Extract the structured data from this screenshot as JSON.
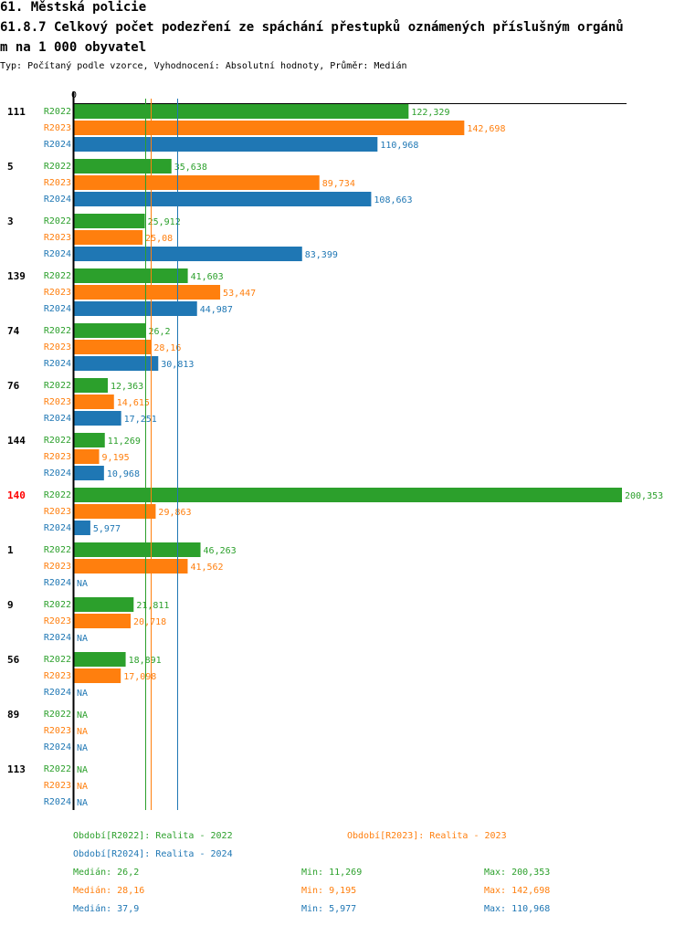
{
  "header": {
    "title1": "61. Městská policie",
    "title2": "61.8.7 Celkový počet podezření ze spáchání přestupků oznámených příslušným orgánů",
    "title3": "m na 1 000 obyvatel",
    "subtitle": "Typ: Počítaný podle vzorce, Vyhodnocení: Absolutní hodnoty, Průměr: Medián"
  },
  "colors": {
    "R2022": "#2ca02c",
    "R2023": "#ff7f0e",
    "R2024": "#1f77b4",
    "highlight": "#ff0000"
  },
  "chart_data": {
    "type": "bar",
    "orientation": "horizontal",
    "axis_zero_label": "0",
    "xlim": [
      0,
      200.353
    ],
    "highlighted_category": "140",
    "categories": [
      "111",
      "5",
      "3",
      "139",
      "74",
      "76",
      "144",
      "140",
      "1",
      "9",
      "56",
      "89",
      "113"
    ],
    "series": [
      {
        "name": "R2022",
        "values": [
          122.329,
          35.638,
          25.912,
          41.603,
          26.2,
          12.363,
          11.269,
          200.353,
          46.263,
          21.811,
          18.891,
          null,
          null
        ],
        "labels": [
          "122,329",
          "35,638",
          "25,912",
          "41,603",
          "26,2",
          "12,363",
          "11,269",
          "200,353",
          "46,263",
          "21,811",
          "18,891",
          "NA",
          "NA"
        ]
      },
      {
        "name": "R2023",
        "values": [
          142.698,
          89.734,
          25.08,
          53.447,
          28.16,
          14.615,
          9.195,
          29.863,
          41.562,
          20.718,
          17.098,
          null,
          null
        ],
        "labels": [
          "142,698",
          "89,734",
          "25,08",
          "53,447",
          "28,16",
          "14,615",
          "9,195",
          "29,863",
          "41,562",
          "20,718",
          "17,098",
          "NA",
          "NA"
        ]
      },
      {
        "name": "R2024",
        "values": [
          110.968,
          108.663,
          83.399,
          44.987,
          30.813,
          17.251,
          10.968,
          5.977,
          null,
          null,
          null,
          null,
          null
        ],
        "labels": [
          "110,968",
          "108,663",
          "83,399",
          "44,987",
          "30,813",
          "17,251",
          "10,968",
          "5,977",
          "NA",
          "NA",
          "NA",
          "NA",
          "NA"
        ]
      }
    ],
    "medians": {
      "R2022": 26.2,
      "R2023": 28.16,
      "R2024": 37.9
    }
  },
  "legend": {
    "period_r2022": "Období[R2022]: Realita - 2022",
    "period_r2023": "Období[R2023]: Realita - 2023",
    "period_r2024": "Období[R2024]: Realita - 2024",
    "stats": [
      {
        "median": "Medián: 26,2",
        "min": "Min: 11,269",
        "max": "Max: 200,353"
      },
      {
        "median": "Medián: 28,16",
        "min": "Min: 9,195",
        "max": "Max: 142,698"
      },
      {
        "median": "Medián: 37,9",
        "min": "Min: 5,977",
        "max": "Max: 110,968"
      }
    ]
  }
}
